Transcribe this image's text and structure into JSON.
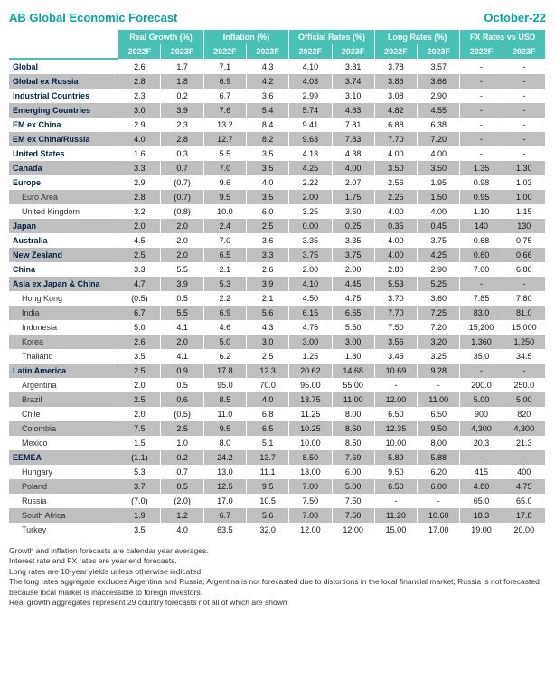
{
  "header": {
    "title": "AB Global Economic Forecast",
    "date": "October-22"
  },
  "groups": [
    {
      "label": "Real Growth (%)",
      "cols": [
        "2022F",
        "2023F"
      ]
    },
    {
      "label": "Inflation (%)",
      "cols": [
        "2022F",
        "2023F"
      ]
    },
    {
      "label": "Official Rates (%)",
      "cols": [
        "2022F",
        "2023F"
      ]
    },
    {
      "label": "Long Rates (%)",
      "cols": [
        "2022F",
        "2023F"
      ]
    },
    {
      "label": "FX Rates vs USD",
      "cols": [
        "2022F",
        "2023F"
      ]
    }
  ],
  "rows": [
    {
      "s": 1,
      "b": 1,
      "l": "Global",
      "v": [
        "2.6",
        "1.7",
        "7.1",
        "4.3",
        "4.10",
        "3.81",
        "3.78",
        "3.57",
        "-",
        "-"
      ]
    },
    {
      "s": 0,
      "b": 1,
      "l": "Global ex Russia",
      "v": [
        "2.8",
        "1.8",
        "6.9",
        "4.2",
        "4.03",
        "3.74",
        "3.86",
        "3.66",
        "-",
        "-"
      ]
    },
    {
      "s": 1,
      "b": 1,
      "l": "Industrial Countries",
      "v": [
        "2.3",
        "0.2",
        "6.7",
        "3.6",
        "2.99",
        "3.10",
        "3.08",
        "2.90",
        "-",
        "-"
      ]
    },
    {
      "s": 0,
      "b": 1,
      "l": "Emerging Countries",
      "v": [
        "3.0",
        "3.9",
        "7.6",
        "5.4",
        "5.74",
        "4.83",
        "4.82",
        "4.55",
        "-",
        "-"
      ]
    },
    {
      "s": 1,
      "b": 1,
      "l": "EM ex China",
      "v": [
        "2.9",
        "2.3",
        "13.2",
        "8.4",
        "9.41",
        "7.81",
        "6.88",
        "6.38",
        "-",
        "-"
      ]
    },
    {
      "s": 0,
      "b": 1,
      "l": "EM ex China/Russia",
      "v": [
        "4.0",
        "2.8",
        "12.7",
        "8.2",
        "9.63",
        "7.83",
        "7.70",
        "7.20",
        "-",
        "-"
      ]
    },
    {
      "s": 1,
      "b": 1,
      "l": "United States",
      "v": [
        "1.6",
        "0.3",
        "5.5",
        "3.5",
        "4.13",
        "4.38",
        "4.00",
        "4.00",
        "-",
        "-"
      ]
    },
    {
      "s": 0,
      "b": 1,
      "l": "Canada",
      "v": [
        "3.3",
        "0.7",
        "7.0",
        "3.5",
        "4.25",
        "4.00",
        "3.50",
        "3.50",
        "1.35",
        "1.30"
      ]
    },
    {
      "s": 1,
      "b": 1,
      "l": "Europe",
      "v": [
        "2.9",
        "(0.7)",
        "9.6",
        "4.0",
        "2.22",
        "2.07",
        "2.56",
        "1.95",
        "0.98",
        "1.03"
      ]
    },
    {
      "s": 0,
      "b": 0,
      "l": "Euro Area",
      "v": [
        "2.8",
        "(0.7)",
        "9.5",
        "3.5",
        "2.00",
        "1.75",
        "2.25",
        "1.50",
        "0.95",
        "1.00"
      ]
    },
    {
      "s": 1,
      "b": 0,
      "l": "United Kingdom",
      "v": [
        "3.2",
        "(0.8)",
        "10.0",
        "6.0",
        "3.25",
        "3.50",
        "4.00",
        "4.00",
        "1.10",
        "1.15"
      ]
    },
    {
      "s": 0,
      "b": 1,
      "l": "Japan",
      "v": [
        "2.0",
        "2.0",
        "2.4",
        "2.5",
        "0.00",
        "0.25",
        "0.35",
        "0.45",
        "140",
        "130"
      ]
    },
    {
      "s": 1,
      "b": 1,
      "l": "Australia",
      "v": [
        "4.5",
        "2.0",
        "7.0",
        "3.6",
        "3.35",
        "3.35",
        "4.00",
        "3.75",
        "0.68",
        "0.75"
      ]
    },
    {
      "s": 0,
      "b": 1,
      "l": "New Zealand",
      "v": [
        "2.5",
        "2.0",
        "6.5",
        "3.3",
        "3.75",
        "3.75",
        "4.00",
        "4.25",
        "0.60",
        "0.66"
      ]
    },
    {
      "s": 1,
      "b": 1,
      "l": "China",
      "v": [
        "3.3",
        "5.5",
        "2.1",
        "2.6",
        "2.00",
        "2.00",
        "2.80",
        "2.90",
        "7.00",
        "6.80"
      ]
    },
    {
      "s": 0,
      "b": 1,
      "l": "Asia ex Japan & China",
      "v": [
        "4.7",
        "3.9",
        "5.3",
        "3.9",
        "4.10",
        "4.45",
        "5.53",
        "5.25",
        "-",
        "-"
      ]
    },
    {
      "s": 1,
      "b": 0,
      "l": "Hong Kong",
      "v": [
        "(0.5)",
        "0.5",
        "2.2",
        "2.1",
        "4.50",
        "4.75",
        "3.70",
        "3.60",
        "7.85",
        "7.80"
      ]
    },
    {
      "s": 0,
      "b": 0,
      "l": "India",
      "v": [
        "6.7",
        "5.5",
        "6.9",
        "5.6",
        "6.15",
        "6.65",
        "7.70",
        "7.25",
        "83.0",
        "81.0"
      ]
    },
    {
      "s": 1,
      "b": 0,
      "l": "Indonesia",
      "v": [
        "5.0",
        "4.1",
        "4.6",
        "4.3",
        "4.75",
        "5.50",
        "7.50",
        "7.20",
        "15,200",
        "15,000"
      ]
    },
    {
      "s": 0,
      "b": 0,
      "l": "Korea",
      "v": [
        "2.6",
        "2.0",
        "5.0",
        "3.0",
        "3.00",
        "3.00",
        "3.56",
        "3.20",
        "1,360",
        "1,250"
      ]
    },
    {
      "s": 1,
      "b": 0,
      "l": "Thailand",
      "v": [
        "3.5",
        "4.1",
        "6.2",
        "2.5",
        "1.25",
        "1.80",
        "3.45",
        "3.25",
        "35.0",
        "34.5"
      ]
    },
    {
      "s": 0,
      "b": 1,
      "l": "Latin America",
      "v": [
        "2.5",
        "0.9",
        "17.8",
        "12.3",
        "20.62",
        "14.68",
        "10.69",
        "9.28",
        "-",
        "-"
      ]
    },
    {
      "s": 1,
      "b": 0,
      "l": "Argentina",
      "v": [
        "2.0",
        "0.5",
        "95.0",
        "70.0",
        "95.00",
        "55.00",
        "-",
        "-",
        "200.0",
        "250.0"
      ]
    },
    {
      "s": 0,
      "b": 0,
      "l": "Brazil",
      "v": [
        "2.5",
        "0.6",
        "8.5",
        "4.0",
        "13.75",
        "11.00",
        "12.00",
        "11.00",
        "5.00",
        "5.00"
      ]
    },
    {
      "s": 1,
      "b": 0,
      "l": "Chile",
      "v": [
        "2.0",
        "(0.5)",
        "11.0",
        "6.8",
        "11.25",
        "8.00",
        "6.50",
        "6.50",
        "900",
        "820"
      ]
    },
    {
      "s": 0,
      "b": 0,
      "l": "Colombia",
      "v": [
        "7.5",
        "2.5",
        "9.5",
        "6.5",
        "10.25",
        "8.50",
        "12.35",
        "9.50",
        "4,300",
        "4,300"
      ]
    },
    {
      "s": 1,
      "b": 0,
      "l": "Mexico",
      "v": [
        "1.5",
        "1.0",
        "8.0",
        "5.1",
        "10.00",
        "8.50",
        "10.00",
        "8.00",
        "20.3",
        "21.3"
      ]
    },
    {
      "s": 0,
      "b": 1,
      "l": "EEMEA",
      "v": [
        "(1.1)",
        "0.2",
        "24.2",
        "13.7",
        "8.50",
        "7.69",
        "5.89",
        "5.88",
        "-",
        "-"
      ]
    },
    {
      "s": 1,
      "b": 0,
      "l": "Hungary",
      "v": [
        "5.3",
        "0.7",
        "13.0",
        "11.1",
        "13.00",
        "6.00",
        "9.50",
        "6.20",
        "415",
        "400"
      ]
    },
    {
      "s": 0,
      "b": 0,
      "l": "Poland",
      "v": [
        "3.7",
        "0.5",
        "12.5",
        "9.5",
        "7.00",
        "5.00",
        "6.50",
        "6.00",
        "4.80",
        "4.75"
      ]
    },
    {
      "s": 1,
      "b": 0,
      "l": "Russia",
      "v": [
        "(7.0)",
        "(2.0)",
        "17.0",
        "10.5",
        "7.50",
        "7.50",
        "-",
        "-",
        "65.0",
        "65.0"
      ]
    },
    {
      "s": 0,
      "b": 0,
      "l": "South Africa",
      "v": [
        "1.9",
        "1.2",
        "6.7",
        "5.6",
        "7.00",
        "7.50",
        "11.20",
        "10.60",
        "18.3",
        "17.8"
      ]
    },
    {
      "s": 1,
      "b": 0,
      "l": "Turkey",
      "v": [
        "3.5",
        "4.0",
        "63.5",
        "32.0",
        "12.00",
        "12.00",
        "15.00",
        "17.00",
        "19.00",
        "20.00"
      ]
    }
  ],
  "notes": [
    "Growth and inflation forecasts are calendar year averages.",
    "Interest rate and FX rates are year end forecasts.",
    "Long rates are 10-year yields unless otherwise indicated.",
    "The long rates aggregate excludes Argentina and Russia; Argentina is not forecasted due to distortions in the local financial market; Russia is not forecasted because local market is inaccessible to foreign investors.",
    "Real growth aggregates represent 29 country forecasts not all of which are shown"
  ],
  "style": {
    "headerColor": "#00a99d",
    "bandColor": "#48c2b4",
    "shadeColor": "#bfbfbf",
    "textColor": "#002147"
  }
}
